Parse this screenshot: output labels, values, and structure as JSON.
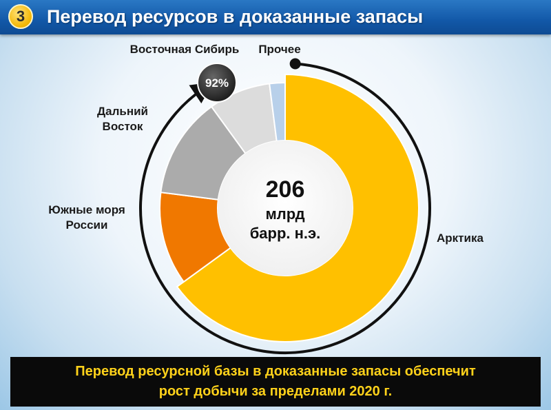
{
  "header": {
    "badge_number": "3",
    "title": "Перевод ресурсов в доказанные запасы"
  },
  "chart_data": {
    "type": "pie",
    "donut": true,
    "center_label": {
      "value": "206",
      "unit_line1": "млрд",
      "unit_line2": "барр. н.э."
    },
    "arc_annotation": "92%",
    "slices": [
      {
        "label": [
          "Арктика"
        ],
        "value": 65,
        "color": "#ffc000"
      },
      {
        "label": [
          "Южные моря",
          "России"
        ],
        "value": 12,
        "color": "#f07800"
      },
      {
        "label": [
          "Дальний",
          "Восток"
        ],
        "value": 13,
        "color": "#ababab"
      },
      {
        "label": [
          "Восточная Сибирь"
        ],
        "value": 8,
        "color": "#dcdcdc"
      },
      {
        "label": [
          "Прочее"
        ],
        "value": 2,
        "color": "#b8d0ea"
      }
    ]
  },
  "footer": {
    "line1": "Перевод ресурсной базы в доказанные запасы обеспечит",
    "line2": "рост добычи за пределами 2020 г."
  }
}
